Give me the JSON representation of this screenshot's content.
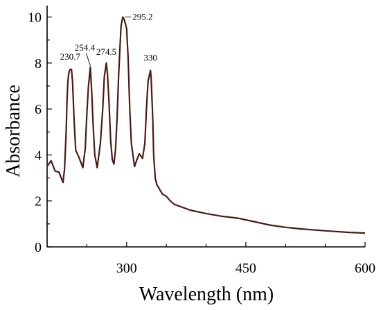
{
  "chart_data": {
    "type": "line",
    "xlabel": "Wavelength (nm)",
    "ylabel": "Absorbance",
    "xlim": [
      200,
      600
    ],
    "ylim": [
      0,
      10.5
    ],
    "x_ticks": [
      300,
      450,
      600
    ],
    "x_tick_labels": [
      "300",
      "450",
      "600"
    ],
    "y_ticks": [
      0,
      2,
      4,
      6,
      8,
      10
    ],
    "y_tick_labels": [
      "0",
      "2",
      "4",
      "6",
      "8",
      "10"
    ],
    "grid": false,
    "line_color": "#4a1a12",
    "series": [
      {
        "x": [
          200,
          205,
          210,
          215,
          220,
          222,
          224,
          225,
          226,
          227,
          228,
          229,
          230,
          230.7,
          232,
          234,
          236,
          240,
          245,
          248,
          250,
          252,
          254.4,
          256,
          258,
          260,
          263,
          267,
          270,
          272,
          274.5,
          276,
          278,
          280,
          282,
          284,
          286,
          288,
          290,
          293,
          295.2,
          297,
          300,
          302,
          304,
          306,
          310,
          313,
          316,
          320,
          323,
          325,
          327,
          330,
          331,
          333,
          334,
          336,
          338,
          340,
          345,
          350,
          355,
          360,
          380,
          400,
          420,
          440,
          460,
          480,
          500,
          520,
          550,
          580,
          600
        ],
        "y": [
          3.5,
          3.75,
          3.3,
          3.25,
          2.8,
          3.4,
          5.0,
          6.3,
          7.1,
          7.5,
          7.65,
          7.72,
          7.72,
          7.72,
          7.2,
          5.5,
          4.2,
          3.9,
          3.45,
          4.3,
          5.8,
          7.0,
          7.82,
          6.8,
          5.2,
          4.0,
          3.45,
          4.5,
          6.0,
          7.4,
          8.0,
          7.5,
          6.2,
          4.6,
          3.8,
          3.6,
          4.2,
          5.6,
          7.5,
          9.6,
          10.0,
          9.9,
          9.5,
          8.2,
          6.0,
          4.5,
          3.5,
          3.8,
          4.05,
          3.85,
          4.5,
          6.0,
          7.2,
          7.68,
          7.3,
          5.5,
          4.0,
          3.0,
          2.7,
          2.6,
          2.3,
          2.2,
          2.0,
          1.85,
          1.6,
          1.45,
          1.33,
          1.25,
          1.1,
          0.95,
          0.85,
          0.78,
          0.7,
          0.63,
          0.6
        ]
      }
    ],
    "annotations": [
      {
        "text": "230.7",
        "x": 230.7,
        "y": 7.72
      },
      {
        "text": "254.4",
        "x": 254.4,
        "y": 7.82
      },
      {
        "text": "274.5",
        "x": 274.5,
        "y": 8.0
      },
      {
        "text": "295.2",
        "x": 295.2,
        "y": 10.0
      },
      {
        "text": "330",
        "x": 330,
        "y": 7.68
      }
    ]
  }
}
